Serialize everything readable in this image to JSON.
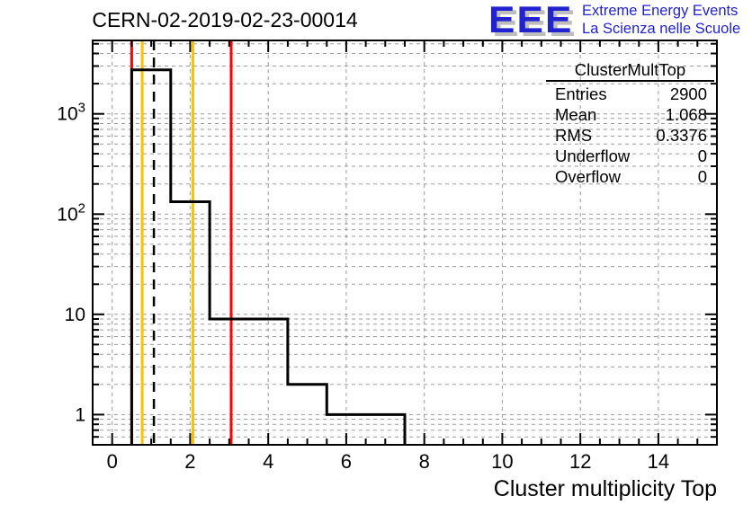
{
  "logo": {
    "eee": "EEE",
    "tagline1": "Extreme Energy Events",
    "tagline2": "La Scienza nelle Scuole",
    "color": "#2222cf",
    "shadow_color": "#bdbdbd"
  },
  "stats_box": {
    "title": "ClusterMultTop",
    "rows": [
      {
        "label": "Entries",
        "value": "2900"
      },
      {
        "label": "Mean",
        "value": "1.068"
      },
      {
        "label": "RMS",
        "value": "0.3376"
      },
      {
        "label": "Underflow",
        "value": "0"
      },
      {
        "label": "Overflow",
        "value": "0"
      }
    ]
  },
  "chart_data": {
    "type": "bar",
    "subtype": "root-step-histogram",
    "title": "CERN-02-2019-02-23-00014",
    "xlabel": "Cluster multiplicity Top",
    "ylabel": "",
    "x_range": [
      -0.5,
      15.5
    ],
    "y_range": [
      0.5,
      5400
    ],
    "log_y": true,
    "grid": true,
    "grid_color": "#9b9b9b",
    "frame_color": "#000000",
    "line_color": "#000000",
    "x_major_ticks": [
      0,
      2,
      4,
      6,
      8,
      10,
      12,
      14
    ],
    "x_tick_labels": [
      "0",
      "2",
      "4",
      "6",
      "8",
      "10",
      "12",
      "14"
    ],
    "x_minor_step": 0.5,
    "y_major_ticks": [
      1,
      10,
      100,
      1000
    ],
    "y_tick_labels": [
      {
        "base": "1",
        "exp": ""
      },
      {
        "base": "10",
        "exp": ""
      },
      {
        "base": "10",
        "exp": "2"
      },
      {
        "base": "10",
        "exp": "3"
      }
    ],
    "bin_edges": [
      0.5,
      1.5,
      2.5,
      3.5,
      4.5,
      5.5,
      6.5,
      7.5
    ],
    "bin_counts": [
      2745,
      133,
      9,
      9,
      2,
      1,
      1
    ],
    "entries": 2900,
    "mean": 1.068,
    "rms": 0.3376,
    "marker_lines": [
      {
        "x": 0.5,
        "color": "#ff0000",
        "style": "solid",
        "name": "red-low-line"
      },
      {
        "x": 0.77,
        "color": "#ffc000",
        "style": "solid",
        "name": "yellow-low-line"
      },
      {
        "x": 1.07,
        "color": "#000000",
        "style": "dashed",
        "name": "mean-dashed-line"
      },
      {
        "x": 2.07,
        "color": "#ffc000",
        "style": "solid",
        "name": "yellow-high-line"
      },
      {
        "x": 3.05,
        "color": "#ff0000",
        "style": "solid",
        "name": "red-high-line"
      }
    ],
    "legend_position": "top-right"
  }
}
